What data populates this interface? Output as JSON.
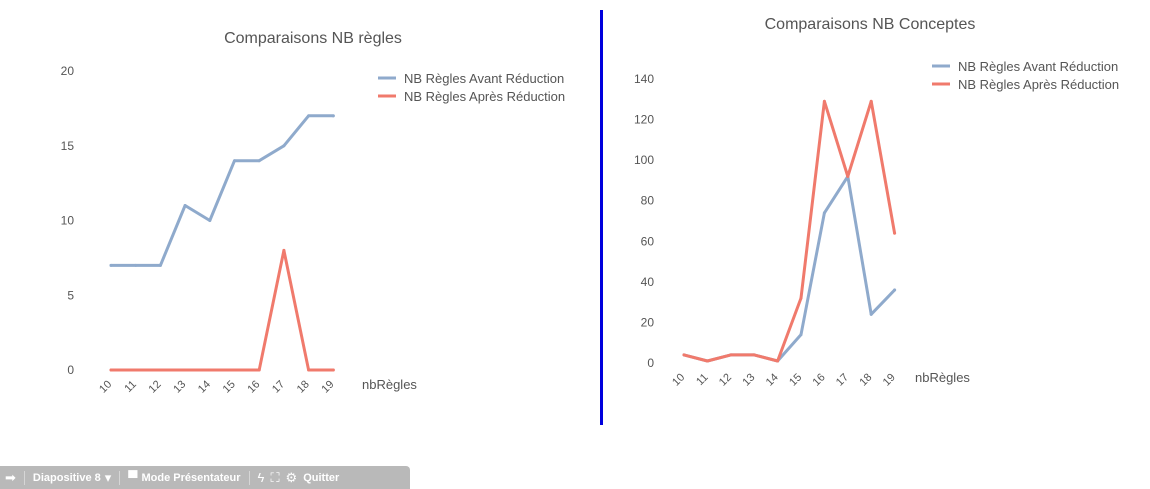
{
  "charts": [
    {
      "id": "left",
      "type": "line",
      "title": "Comparaisons NB règles",
      "xlabel": "nbRègles",
      "categories": [
        "10",
        "11",
        "12",
        "13",
        "14",
        "15",
        "16",
        "17",
        "18",
        "19"
      ],
      "ylim": [
        0,
        20
      ],
      "yticks": [
        0,
        5,
        10,
        15,
        20
      ],
      "series": [
        {
          "name": "NB Règles Avant Réduction",
          "color": "#8faacc",
          "values": [
            7,
            7,
            7,
            11,
            10,
            14,
            14,
            15,
            17,
            17
          ]
        },
        {
          "name": "NB Règles Après Réduction",
          "color": "#f07a6c",
          "values": [
            0,
            0,
            0,
            0,
            0,
            0,
            0,
            8,
            0,
            0
          ]
        }
      ],
      "legend": "top-right",
      "grid": false
    },
    {
      "id": "right",
      "type": "line",
      "title": "Comparaisons NB Conceptes",
      "xlabel": "nbRègles",
      "categories": [
        "10",
        "11",
        "12",
        "13",
        "14",
        "15",
        "16",
        "17",
        "18",
        "19"
      ],
      "ylim": [
        0,
        140
      ],
      "yticks": [
        0,
        20,
        40,
        60,
        80,
        100,
        120,
        140
      ],
      "series": [
        {
          "name": "NB Règles Avant Réduction",
          "color": "#8faacc",
          "values": [
            4,
            1,
            4,
            4,
            1,
            14,
            74,
            92,
            24,
            36
          ]
        },
        {
          "name": "NB Règles Après Réduction",
          "color": "#f07a6c",
          "values": [
            4,
            1,
            4,
            4,
            1,
            32,
            129,
            92,
            129,
            64
          ]
        }
      ],
      "legend": "top-right",
      "grid": false
    }
  ],
  "toolbar": {
    "slide_label": "Diapositive 8",
    "presenter_label": "Mode Présentateur",
    "quit_label": "Quitter",
    "icons": [
      "arrow-right-icon",
      "chevron-down-icon",
      "screen-icon",
      "lightning-icon",
      "fullscreen-icon",
      "gear-icon"
    ]
  }
}
